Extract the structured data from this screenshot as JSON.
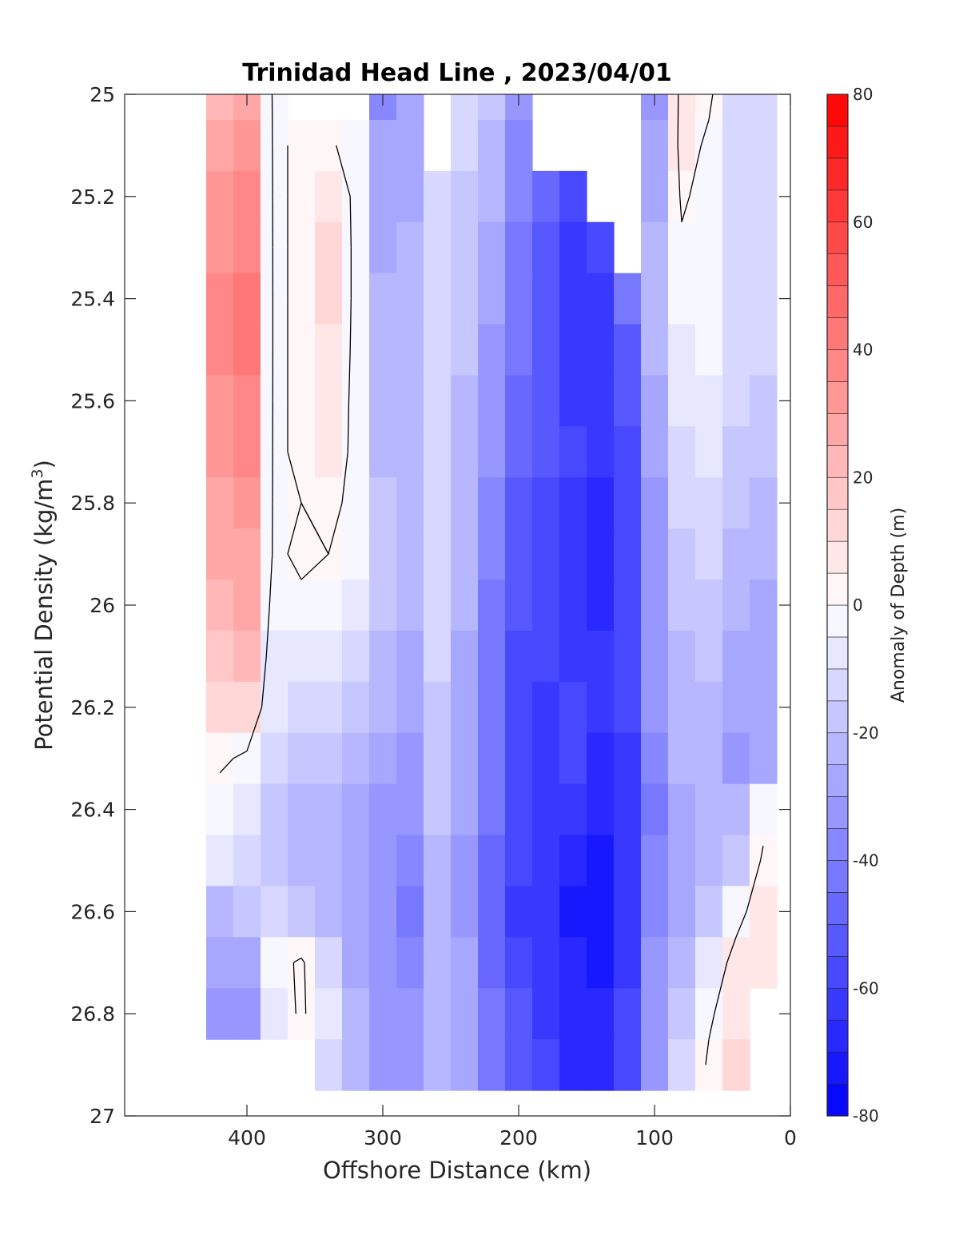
{
  "chart_data": {
    "type": "heatmap",
    "title": "Trinidad Head Line , 2023/04/01",
    "xlabel": "Offshore Distance (km)",
    "ylabel_main": "Potential Density (kg/m",
    "ylabel_sup": "3",
    "ylabel_close": ")",
    "colorbar_label": "Anomaly of Depth (m)",
    "xlim": [
      490,
      0
    ],
    "ylim": [
      25,
      27
    ],
    "x_reversed": true,
    "y_reversed": true,
    "x_ticks": [
      "400",
      "300",
      "200",
      "100",
      "0"
    ],
    "y_ticks": [
      "25",
      "25.2",
      "25.4",
      "25.6",
      "25.8",
      "26",
      "26.2",
      "26.4",
      "26.6",
      "26.8",
      "27"
    ],
    "colorbar_ticks": [
      "80",
      "60",
      "40",
      "20",
      "0",
      "-20",
      "-40",
      "-60",
      "-80"
    ],
    "clim": [
      -80,
      80
    ],
    "contour_step": 5,
    "colormap": {
      "negative": "#0000ff",
      "zero": "#ffffff",
      "positive": "#ff0000"
    },
    "contour_levels_drawn": [
      0
    ],
    "x": [
      420,
      400,
      380,
      360,
      340,
      320,
      300,
      280,
      260,
      240,
      220,
      200,
      180,
      160,
      140,
      120,
      100,
      80,
      60,
      40,
      20
    ],
    "y": [
      25.0,
      25.1,
      25.2,
      25.3,
      25.4,
      25.5,
      25.6,
      25.7,
      25.8,
      25.9,
      26.0,
      26.1,
      26.2,
      26.3,
      26.4,
      26.5,
      26.6,
      26.7,
      26.8,
      26.9
    ],
    "z": [
      [
        20,
        25,
        -2,
        null,
        null,
        null,
        -40,
        -30,
        null,
        -15,
        -20,
        -35,
        null,
        null,
        null,
        null,
        -35,
        5,
        2,
        -12,
        -15
      ],
      [
        25,
        30,
        -2,
        2,
        2,
        -5,
        -30,
        -28,
        null,
        -15,
        -22,
        -38,
        null,
        null,
        null,
        null,
        -30,
        5,
        -2,
        -12,
        -15
      ],
      [
        30,
        35,
        -2,
        2,
        8,
        -2,
        -28,
        -26,
        -15,
        -18,
        -25,
        -40,
        -50,
        -60,
        null,
        null,
        -28,
        2,
        -5,
        -12,
        -15
      ],
      [
        32,
        38,
        -2,
        2,
        10,
        -2,
        -26,
        -24,
        -15,
        -20,
        -28,
        -42,
        -52,
        -62,
        -60,
        null,
        -25,
        -2,
        -5,
        -12,
        -15
      ],
      [
        35,
        40,
        -2,
        2,
        10,
        -2,
        -25,
        -22,
        -15,
        -20,
        -30,
        -45,
        -55,
        -62,
        -62,
        -45,
        -22,
        -5,
        -5,
        -12,
        -15
      ],
      [
        35,
        40,
        -2,
        2,
        8,
        -2,
        -25,
        -22,
        -15,
        -20,
        -32,
        -45,
        -55,
        -62,
        -65,
        -55,
        -25,
        -8,
        -5,
        -12,
        -15
      ],
      [
        32,
        38,
        -2,
        2,
        6,
        -2,
        -25,
        -22,
        -15,
        -22,
        -35,
        -48,
        -55,
        -62,
        -65,
        -55,
        -28,
        -10,
        -8,
        -15,
        -18
      ],
      [
        30,
        35,
        -2,
        2,
        5,
        -2,
        -22,
        -22,
        -15,
        -22,
        -35,
        -50,
        -55,
        -60,
        -65,
        -58,
        -30,
        -12,
        -10,
        -18,
        -20
      ],
      [
        28,
        32,
        -2,
        0,
        2,
        -2,
        -20,
        -22,
        -15,
        -22,
        -38,
        -52,
        -58,
        -62,
        -68,
        -58,
        -32,
        -15,
        -12,
        -20,
        -22
      ],
      [
        25,
        28,
        -2,
        2,
        0,
        -5,
        -20,
        -22,
        -15,
        -25,
        -40,
        -55,
        -58,
        -62,
        -70,
        -60,
        -35,
        -18,
        -15,
        -22,
        -25
      ],
      [
        22,
        25,
        -5,
        -2,
        -2,
        -8,
        -20,
        -25,
        -15,
        -25,
        -42,
        -55,
        -58,
        -62,
        -68,
        -60,
        -35,
        -20,
        -18,
        -25,
        -28
      ],
      [
        18,
        20,
        -8,
        -8,
        -8,
        -12,
        -22,
        -28,
        -15,
        -28,
        -45,
        -58,
        -60,
        -62,
        -65,
        -60,
        -35,
        -22,
        -20,
        -28,
        -30
      ],
      [
        12,
        12,
        -10,
        -12,
        -15,
        -20,
        -25,
        -30,
        -18,
        -28,
        -45,
        -58,
        -62,
        -60,
        -65,
        -60,
        -35,
        -22,
        -22,
        -30,
        -30
      ],
      [
        2,
        -2,
        -15,
        -18,
        -20,
        -25,
        -28,
        -32,
        -20,
        -30,
        -45,
        -58,
        -62,
        -60,
        -68,
        -62,
        -40,
        -25,
        -25,
        -32,
        -30
      ],
      [
        -5,
        -10,
        -20,
        -25,
        -25,
        -28,
        -32,
        -35,
        -20,
        -30,
        -45,
        -60,
        -62,
        -65,
        -70,
        -65,
        -42,
        -28,
        -25,
        -25,
        -5
      ],
      [
        -10,
        -15,
        -20,
        -25,
        -25,
        -30,
        -35,
        -40,
        -22,
        -32,
        -48,
        -60,
        -65,
        -68,
        -72,
        -65,
        -40,
        -28,
        -22,
        -18,
        2
      ],
      [
        -25,
        -20,
        -15,
        -20,
        -22,
        -30,
        -35,
        -42,
        -22,
        -32,
        -50,
        -62,
        -65,
        -72,
        -75,
        -65,
        -40,
        -28,
        -20,
        -5,
        8
      ],
      [
        -30,
        -28,
        -5,
        2,
        -15,
        -28,
        -35,
        -38,
        -22,
        -30,
        -48,
        -60,
        -65,
        -70,
        -72,
        -62,
        -35,
        -22,
        -10,
        5,
        8
      ],
      [
        -35,
        -32,
        -8,
        2,
        -10,
        -25,
        -35,
        -35,
        -22,
        -30,
        -45,
        -55,
        -62,
        -68,
        -70,
        -60,
        -35,
        -20,
        -2,
        8,
        null
      ],
      [
        null,
        null,
        null,
        null,
        -15,
        -22,
        -35,
        -35,
        -22,
        -30,
        -45,
        -55,
        -60,
        -68,
        -70,
        -60,
        -32,
        -15,
        2,
        10,
        null
      ]
    ]
  }
}
